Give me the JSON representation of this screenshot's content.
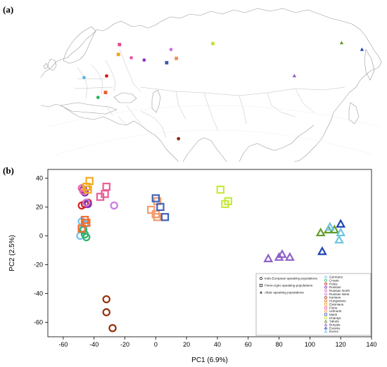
{
  "panels": {
    "a": "(a)",
    "b": "(b)"
  },
  "map": {
    "markers": [
      {
        "population": "Germans",
        "shape": "circle",
        "color": "#5bb6e8",
        "lon": 9.5,
        "lat": 51.5
      },
      {
        "population": "Croats",
        "shape": "circle",
        "color": "#29b35a",
        "lon": 16.0,
        "lat": 45.5
      },
      {
        "population": "Poles",
        "shape": "circle",
        "color": "#d11a1a",
        "lon": 20.0,
        "lat": 52.0
      },
      {
        "population": "Russian",
        "shape": "circle",
        "color": "#8b35c8",
        "lon": 37.5,
        "lat": 56.8
      },
      {
        "population": "Russian North",
        "shape": "circle",
        "color": "#e85aa8",
        "lon": 31.5,
        "lat": 57.5
      },
      {
        "population": "Russian West",
        "shape": "circle",
        "color": "#cf72e0",
        "lon": 50.0,
        "lat": 60.0
      },
      {
        "population": "Iranians",
        "shape": "circle",
        "color": "#8b2e0c",
        "lon": 53.5,
        "lat": 33.0
      },
      {
        "population": "Hungarians",
        "shape": "square",
        "color": "#f05a28",
        "lon": 19.5,
        "lat": 47.0
      },
      {
        "population": "Estonians",
        "shape": "square",
        "color": "#f0a81c",
        "lon": 25.5,
        "lat": 58.5
      },
      {
        "population": "Finns",
        "shape": "square",
        "color": "#e44b8c",
        "lon": 26.0,
        "lat": 61.5
      },
      {
        "population": "Udmurts",
        "shape": "square",
        "color": "#f08a5a",
        "lon": 52.5,
        "lat": 57.3
      },
      {
        "population": "Maris",
        "shape": "square",
        "color": "#3a58a8",
        "lon": 48.0,
        "lat": 56.0
      },
      {
        "population": "Khantys",
        "shape": "square",
        "color": "#bfe630",
        "lon": 69.5,
        "lat": 61.8
      },
      {
        "population": "Yakuts",
        "shape": "triangle",
        "color": "#5e9a2c",
        "lon": 129.5,
        "lat": 62.0
      },
      {
        "population": "Buryats",
        "shape": "triangle",
        "color": "#8a5cc4",
        "lon": 107.5,
        "lat": 52.0
      },
      {
        "population": "Evenks",
        "shape": "triangle",
        "color": "#1a3fb0",
        "lon": 139.0,
        "lat": 60.0
      }
    ]
  },
  "chart_data": {
    "type": "scatter",
    "xlabel": "PC1 (6.9%)",
    "ylabel": "PC2 (2.5%)",
    "xlim": [
      -70,
      140
    ],
    "ylim": [
      -70,
      46
    ],
    "xticks": [
      -60,
      -40,
      -20,
      0,
      20,
      40,
      60,
      80,
      100,
      120,
      140
    ],
    "yticks": [
      -60,
      -40,
      -20,
      0,
      20,
      40
    ],
    "grid": false,
    "legend_position": "bottom-right",
    "legend_groups": [
      {
        "shape": "circle",
        "label": "Indo-European speaking populations"
      },
      {
        "shape": "square",
        "label": "Finno-Ugric speaking populations"
      },
      {
        "shape": "triangle",
        "label": "Altaic speaking populations"
      }
    ],
    "series": [
      {
        "name": "Germans",
        "shape": "circle",
        "color": "#6cc3ef",
        "x": [
          -48,
          -49,
          -46,
          -47
        ],
        "y": [
          10,
          0,
          8,
          5
        ]
      },
      {
        "name": "Croats",
        "shape": "circle",
        "color": "#2fb36b",
        "x": [
          -45,
          -46,
          -47
        ],
        "y": [
          -1,
          1,
          4
        ]
      },
      {
        "name": "Poles",
        "shape": "circle",
        "color": "#d32020",
        "x": [
          -48,
          -46,
          -44
        ],
        "y": [
          21,
          22,
          23
        ]
      },
      {
        "name": "Russian",
        "shape": "circle",
        "color": "#7d2fb5",
        "x": [
          -47,
          -44,
          -46
        ],
        "y": [
          32,
          22,
          30
        ]
      },
      {
        "name": "Russian North",
        "shape": "circle",
        "color": "#e867b2",
        "x": [
          -48,
          -47
        ],
        "y": [
          33,
          31
        ]
      },
      {
        "name": "Russian West",
        "shape": "circle",
        "color": "#c97be0",
        "x": [
          -27,
          -45
        ],
        "y": [
          21,
          23
        ]
      },
      {
        "name": "Iranians",
        "shape": "circle",
        "color": "#94300c",
        "x": [
          -32,
          -32,
          -28
        ],
        "y": [
          -44,
          -53,
          -64
        ]
      },
      {
        "name": "Hungarians",
        "shape": "square",
        "color": "#f26a2c",
        "x": [
          -46,
          -48,
          -45
        ],
        "y": [
          11,
          5,
          9
        ]
      },
      {
        "name": "Estonians",
        "shape": "square",
        "color": "#f2ab1e",
        "x": [
          -44,
          -45,
          -43
        ],
        "y": [
          32,
          34,
          38
        ]
      },
      {
        "name": "Finns",
        "shape": "square",
        "color": "#ea5d97",
        "x": [
          -32,
          -36,
          -33
        ],
        "y": [
          34,
          27,
          29
        ]
      },
      {
        "name": "Udmurts",
        "shape": "square",
        "color": "#f49a6c",
        "x": [
          -3,
          1,
          0,
          1
        ],
        "y": [
          18,
          24,
          15,
          13
        ]
      },
      {
        "name": "Maris",
        "shape": "square",
        "color": "#3d63b8",
        "x": [
          0,
          6,
          3
        ],
        "y": [
          26,
          13,
          20
        ]
      },
      {
        "name": "Khantys",
        "shape": "square",
        "color": "#c5ea3c",
        "x": [
          42,
          45,
          47
        ],
        "y": [
          32,
          22,
          24
        ]
      },
      {
        "name": "Yakuts",
        "shape": "triangle",
        "color": "#629c2d",
        "x": [
          107,
          112,
          116
        ],
        "y": [
          2,
          4,
          4
        ]
      },
      {
        "name": "Buryats",
        "shape": "triangle",
        "color": "#8f62c7",
        "x": [
          73,
          80,
          82,
          87
        ],
        "y": [
          -16,
          -15,
          -13,
          -15
        ]
      },
      {
        "name": "Evenks",
        "shape": "triangle",
        "color": "#1d44b5",
        "x": [
          108,
          120
        ],
        "y": [
          -11,
          8
        ]
      },
      {
        "name": "Evens",
        "shape": "triangle",
        "color": "#6ec6dd",
        "x": [
          113,
          120,
          119
        ],
        "y": [
          6,
          2,
          -3
        ]
      }
    ]
  }
}
